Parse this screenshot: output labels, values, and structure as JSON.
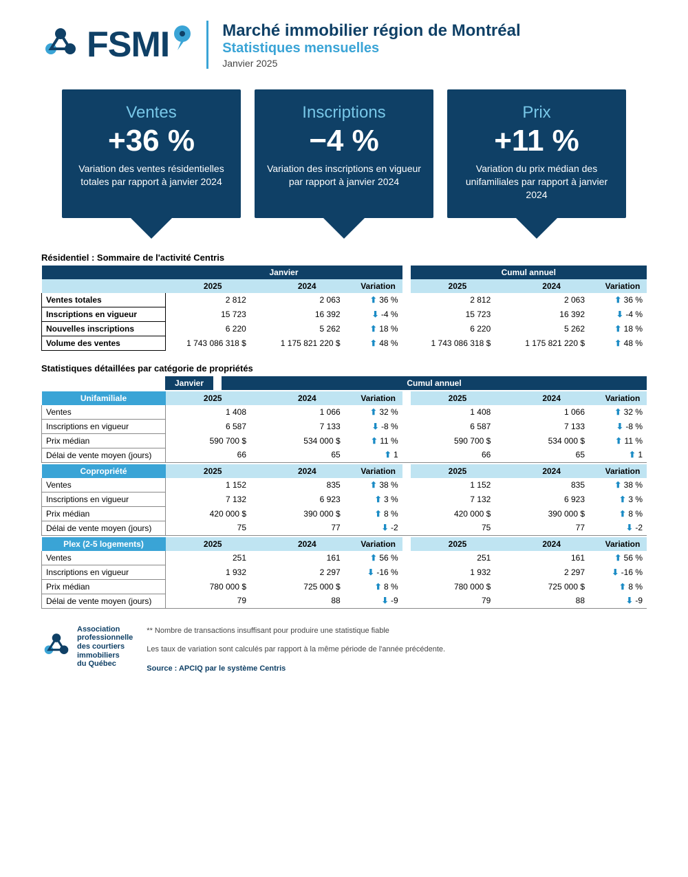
{
  "colors": {
    "dark_navy": "#0f4066",
    "light_blue": "#3aa4d6",
    "pale_blue": "#bfe4f2",
    "arrow": "#1a8bc5"
  },
  "header": {
    "logo_text": "FSMI",
    "title": "Marché immobilier région de Montréal",
    "subtitle": "Statistiques mensuelles",
    "date": "Janvier 2025"
  },
  "cards": [
    {
      "title": "Ventes",
      "value": "+36 %",
      "desc": "Variation des ventes résidentielles totales par rapport à janvier 2024"
    },
    {
      "title": "Inscriptions",
      "value": "−4 %",
      "desc": "Variation des inscriptions en vigueur par rapport à janvier 2024"
    },
    {
      "title": "Prix",
      "value": "+11 %",
      "desc": "Variation du prix médian des unifamiliales par rapport à janvier 2024"
    }
  ],
  "summary": {
    "title": "Résidentiel : Sommaire de l'activité Centris",
    "period_labels": {
      "month": "Janvier",
      "ytd": "Cumul annuel"
    },
    "col_labels": {
      "y2025": "2025",
      "y2024": "2024",
      "var": "Variation"
    },
    "rows": [
      {
        "label": "Ventes totales",
        "m2025": "2 812",
        "m2024": "2 063",
        "mdir": "up",
        "mvar": "36 %",
        "y2025": "2 812",
        "y2024": "2 063",
        "ydir": "up",
        "yvar": "36 %"
      },
      {
        "label": "Inscriptions en vigueur",
        "m2025": "15 723",
        "m2024": "16 392",
        "mdir": "down",
        "mvar": "-4 %",
        "y2025": "15 723",
        "y2024": "16 392",
        "ydir": "down",
        "yvar": "-4 %"
      },
      {
        "label": "Nouvelles inscriptions",
        "m2025": "6 220",
        "m2024": "5 262",
        "mdir": "up",
        "mvar": "18 %",
        "y2025": "6 220",
        "y2024": "5 262",
        "ydir": "up",
        "yvar": "18 %"
      },
      {
        "label": "Volume des ventes",
        "m2025": "1 743 086 318  $",
        "m2024": "1 175 821 220  $",
        "mdir": "up",
        "mvar": "48 %",
        "y2025": "1 743 086 318  $",
        "y2024": "1 175 821 220  $",
        "ydir": "up",
        "yvar": "48 %"
      }
    ]
  },
  "detail": {
    "title": "Statistiques détaillées par catégorie de propriétés",
    "period_labels": {
      "month": "Janvier",
      "ytd": "Cumul annuel"
    },
    "col_labels": {
      "y2025": "2025",
      "y2024": "2024",
      "var": "Variation"
    },
    "categories": [
      {
        "name": "Unifamiliale",
        "rows": [
          {
            "label": "Ventes",
            "m2025": "1 408",
            "m2024": "1 066",
            "mdir": "up",
            "mvar": "32 %",
            "y2025": "1 408",
            "y2024": "1 066",
            "ydir": "up",
            "yvar": "32 %"
          },
          {
            "label": "Inscriptions en vigueur",
            "m2025": "6 587",
            "m2024": "7 133",
            "mdir": "down",
            "mvar": "-8 %",
            "y2025": "6 587",
            "y2024": "7 133",
            "ydir": "down",
            "yvar": "-8 %"
          },
          {
            "label": "Prix médian",
            "m2025": "590 700 $",
            "m2024": "534 000 $",
            "mdir": "up",
            "mvar": "11 %",
            "y2025": "590 700 $",
            "y2024": "534 000 $",
            "ydir": "up",
            "yvar": "11 %"
          },
          {
            "label": "Délai de vente moyen (jours)",
            "m2025": "66",
            "m2024": "65",
            "mdir": "up",
            "mvar": "1",
            "y2025": "66",
            "y2024": "65",
            "ydir": "up",
            "yvar": "1"
          }
        ]
      },
      {
        "name": "Copropriété",
        "rows": [
          {
            "label": "Ventes",
            "m2025": "1 152",
            "m2024": "835",
            "mdir": "up",
            "mvar": "38 %",
            "y2025": "1 152",
            "y2024": "835",
            "ydir": "up",
            "yvar": "38 %"
          },
          {
            "label": "Inscriptions en vigueur",
            "m2025": "7 132",
            "m2024": "6 923",
            "mdir": "up",
            "mvar": "3 %",
            "y2025": "7 132",
            "y2024": "6 923",
            "ydir": "up",
            "yvar": "3 %"
          },
          {
            "label": "Prix médian",
            "m2025": "420 000 $",
            "m2024": "390 000 $",
            "mdir": "up",
            "mvar": "8 %",
            "y2025": "420 000 $",
            "y2024": "390 000 $",
            "ydir": "up",
            "yvar": "8 %"
          },
          {
            "label": "Délai de vente moyen (jours)",
            "m2025": "75",
            "m2024": "77",
            "mdir": "down",
            "mvar": "-2",
            "y2025": "75",
            "y2024": "77",
            "ydir": "down",
            "yvar": "-2"
          }
        ]
      },
      {
        "name": "Plex (2-5 logements)",
        "rows": [
          {
            "label": "Ventes",
            "m2025": "251",
            "m2024": "161",
            "mdir": "up",
            "mvar": "56 %",
            "y2025": "251",
            "y2024": "161",
            "ydir": "up",
            "yvar": "56 %"
          },
          {
            "label": "Inscriptions en vigueur",
            "m2025": "1 932",
            "m2024": "2 297",
            "mdir": "down",
            "mvar": "-16 %",
            "y2025": "1 932",
            "y2024": "2 297",
            "ydir": "down",
            "yvar": "-16 %"
          },
          {
            "label": "Prix médian",
            "m2025": "780 000 $",
            "m2024": "725 000 $",
            "mdir": "up",
            "mvar": "8 %",
            "y2025": "780 000 $",
            "y2024": "725 000 $",
            "ydir": "up",
            "yvar": "8 %"
          },
          {
            "label": "Délai de vente moyen (jours)",
            "m2025": "79",
            "m2024": "88",
            "mdir": "down",
            "mvar": "-9",
            "y2025": "79",
            "y2024": "88",
            "ydir": "down",
            "yvar": "-9"
          }
        ]
      }
    ]
  },
  "footer": {
    "assoc_lines": [
      "Association",
      "professionnelle",
      "des courtiers",
      "immobiliers",
      "du Québec"
    ],
    "note1": "** Nombre de transactions insuffisant pour produire une statistique fiable",
    "note2": "Les taux de variation sont calculés par rapport à la même période de l'année précédente.",
    "source": "Source : APCIQ par le système Centris"
  }
}
